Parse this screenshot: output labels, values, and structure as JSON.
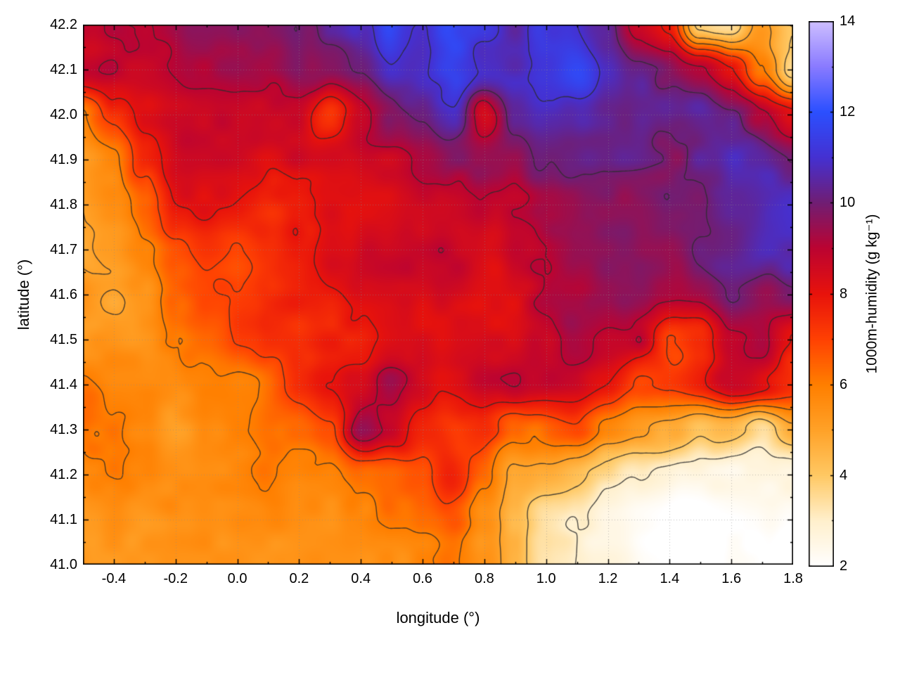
{
  "chart_data": {
    "type": "heatmap",
    "title": "",
    "xlabel": "longitude (°)",
    "ylabel": "latitude (°)",
    "colorbar_label": "1000m-humidity (g kg⁻¹)",
    "xlim": [
      -0.5,
      1.8
    ],
    "ylim": [
      41.0,
      42.2
    ],
    "zlim": [
      2,
      14
    ],
    "grid": true,
    "legend_position": "right-colorbar",
    "x_ticks": [
      -0.4,
      -0.2,
      0.0,
      0.2,
      0.4,
      0.6,
      0.8,
      1.0,
      1.2,
      1.4,
      1.6,
      1.8
    ],
    "x_tick_labels": [
      "-0.4",
      "-0.2",
      "0.0",
      "0.2",
      "0.4",
      "0.6",
      "0.8",
      "1.0",
      "1.2",
      "1.4",
      "1.6",
      "1.8"
    ],
    "x_minor_step": 0.1,
    "y_ticks": [
      41.0,
      41.1,
      41.2,
      41.3,
      41.4,
      41.5,
      41.6,
      41.7,
      41.8,
      41.9,
      42.0,
      42.1,
      42.2
    ],
    "y_tick_labels": [
      "41.0",
      "41.1",
      "41.2",
      "41.3",
      "41.4",
      "41.5",
      "41.6",
      "41.7",
      "41.8",
      "41.9",
      "42.0",
      "42.1",
      "42.2"
    ],
    "y_minor_step": 0.05,
    "colorbar_ticks": [
      2,
      4,
      6,
      8,
      10,
      12,
      14
    ],
    "colorbar_tick_labels": [
      "2",
      "4",
      "6",
      "8",
      "10",
      "12",
      "14"
    ],
    "colorbar_minor_step": 1,
    "contour_levels": [
      3,
      4,
      5,
      6,
      7,
      8,
      9,
      10,
      11
    ],
    "colormap": [
      [
        2,
        "#ffffff"
      ],
      [
        3,
        "#fff0cd"
      ],
      [
        4,
        "#ffc964"
      ],
      [
        5,
        "#ffa228"
      ],
      [
        6,
        "#ff7f00"
      ],
      [
        7,
        "#ff4103"
      ],
      [
        8,
        "#e8130c"
      ],
      [
        9,
        "#bc0432"
      ],
      [
        10,
        "#711e74"
      ],
      [
        11,
        "#4531d2"
      ],
      [
        12,
        "#2c50ff"
      ],
      [
        13,
        "#8a7bff"
      ],
      [
        14,
        "#cfc0ff"
      ]
    ],
    "style": {
      "contour_color": "#2d2d2d",
      "grid_color": "#8a8a8a",
      "tick_color": "#000000",
      "border_color": "#000000",
      "background": "#ffffff"
    },
    "lons": [
      -0.5,
      -0.4,
      -0.3,
      -0.2,
      -0.1,
      0.0,
      0.1,
      0.2,
      0.3,
      0.4,
      0.5,
      0.6,
      0.7,
      0.8,
      0.9,
      1.0,
      1.1,
      1.2,
      1.3,
      1.4,
      1.5,
      1.6,
      1.7,
      1.8
    ],
    "lats": [
      42.2,
      42.1,
      42.0,
      41.9,
      41.8,
      41.7,
      41.6,
      41.5,
      41.4,
      41.3,
      41.2,
      41.1,
      41.0
    ],
    "values": [
      [
        9.2,
        9.2,
        9.0,
        9.2,
        9.5,
        9.5,
        9.5,
        9.6,
        10.0,
        10.8,
        11.6,
        11.0,
        11.8,
        11.2,
        10.6,
        11.6,
        11.2,
        10.5,
        9.0,
        8.0,
        4.0,
        3.5,
        5.0,
        4.0
      ],
      [
        8.6,
        9.0,
        9.0,
        9.0,
        9.0,
        9.2,
        9.0,
        9.4,
        9.5,
        10.0,
        11.0,
        10.6,
        11.2,
        10.6,
        10.5,
        11.0,
        11.5,
        10.6,
        10.0,
        9.6,
        9.0,
        8.0,
        6.0,
        4.0
      ],
      [
        6.0,
        7.5,
        8.5,
        8.5,
        8.5,
        8.5,
        8.5,
        8.5,
        7.2,
        8.5,
        9.5,
        10.0,
        10.5,
        8.2,
        10.0,
        10.5,
        10.5,
        10.0,
        10.0,
        10.5,
        10.5,
        10.0,
        9.0,
        8.2
      ],
      [
        5.5,
        6.0,
        7.5,
        8.5,
        8.5,
        8.5,
        8.0,
        8.5,
        8.5,
        8.5,
        8.5,
        9.0,
        9.5,
        9.5,
        9.5,
        10.0,
        10.0,
        10.0,
        10.0,
        10.0,
        10.5,
        10.5,
        10.5,
        10.0
      ],
      [
        5.0,
        5.5,
        6.5,
        8.0,
        8.0,
        8.0,
        7.5,
        8.0,
        8.5,
        8.5,
        8.5,
        8.5,
        8.5,
        9.0,
        9.0,
        9.5,
        9.5,
        9.5,
        9.5,
        10.0,
        10.0,
        10.5,
        10.5,
        10.5
      ],
      [
        5.0,
        5.5,
        6.0,
        7.0,
        7.5,
        7.0,
        7.5,
        8.0,
        8.5,
        8.5,
        8.5,
        8.5,
        8.5,
        8.5,
        9.0,
        9.0,
        9.5,
        9.5,
        9.5,
        9.5,
        10.0,
        10.0,
        10.5,
        10.5
      ],
      [
        5.5,
        5.0,
        5.5,
        6.5,
        7.0,
        7.0,
        7.5,
        8.0,
        8.0,
        8.5,
        8.5,
        8.5,
        8.5,
        8.5,
        8.5,
        9.0,
        9.0,
        9.5,
        9.5,
        9.5,
        9.5,
        10.0,
        9.5,
        10.0
      ],
      [
        5.0,
        5.5,
        5.5,
        6.0,
        6.5,
        7.0,
        7.5,
        7.5,
        8.0,
        8.0,
        8.5,
        8.5,
        8.5,
        8.5,
        8.5,
        8.5,
        9.0,
        9.0,
        9.0,
        7.0,
        7.5,
        9.0,
        9.5,
        8.0
      ],
      [
        6.0,
        5.5,
        5.5,
        5.5,
        6.0,
        6.0,
        6.5,
        7.5,
        8.0,
        8.0,
        9.0,
        8.5,
        8.5,
        8.5,
        8.5,
        8.5,
        8.5,
        8.0,
        7.0,
        7.5,
        8.0,
        8.5,
        8.0,
        7.5
      ],
      [
        6.5,
        6.0,
        5.5,
        5.0,
        5.5,
        6.0,
        6.5,
        6.0,
        6.5,
        9.0,
        8.5,
        7.5,
        7.0,
        7.5,
        6.5,
        6.0,
        6.5,
        5.5,
        5.0,
        4.5,
        4.0,
        4.5,
        3.5,
        5.0
      ],
      [
        6.0,
        6.0,
        5.5,
        5.5,
        5.5,
        5.5,
        6.0,
        5.5,
        5.5,
        6.0,
        6.0,
        6.5,
        7.5,
        6.5,
        5.0,
        4.5,
        4.0,
        3.5,
        3.0,
        2.8,
        2.5,
        2.5,
        2.5,
        2.5
      ],
      [
        5.5,
        5.5,
        5.0,
        5.5,
        5.5,
        5.5,
        5.5,
        5.5,
        5.5,
        5.5,
        6.0,
        6.0,
        6.5,
        5.5,
        4.5,
        3.5,
        3.0,
        2.5,
        2.2,
        2.0,
        2.0,
        2.0,
        2.0,
        2.0
      ],
      [
        5.5,
        5.5,
        5.5,
        5.5,
        5.5,
        5.5,
        5.5,
        5.5,
        5.5,
        5.5,
        5.5,
        6.0,
        6.5,
        5.5,
        4.5,
        3.5,
        3.0,
        2.5,
        2.2,
        2.0,
        2.0,
        2.0,
        2.0,
        2.0
      ]
    ]
  }
}
